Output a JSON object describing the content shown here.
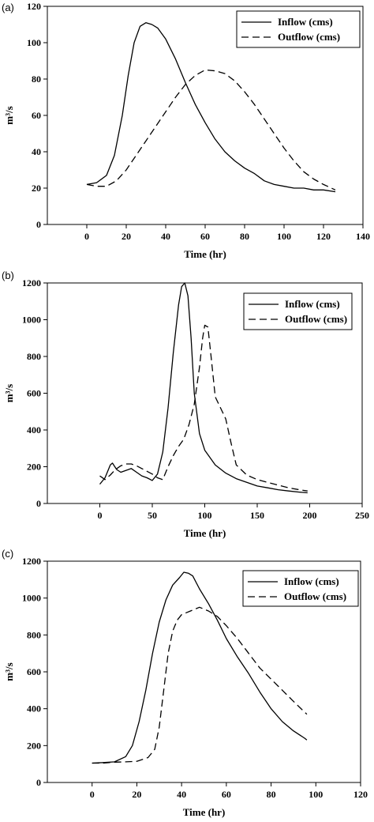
{
  "chart_data": [
    {
      "type": "line",
      "panel_label": "(a)",
      "xlabel": "Time (hr)",
      "ylabel": "m³/s",
      "xlim": [
        -20,
        140
      ],
      "ylim": [
        0,
        120
      ],
      "xticks": [
        "0",
        "20",
        "40",
        "60",
        "80",
        "100",
        "120",
        "140"
      ],
      "yticks": [
        "0",
        "20",
        "40",
        "60",
        "80",
        "100",
        "120"
      ],
      "legend_position": "top-right",
      "series": [
        {
          "name": "Inflow (cms)",
          "dash": "solid",
          "x": [
            0,
            5,
            10,
            14,
            18,
            21,
            24,
            27,
            30,
            33,
            36,
            40,
            45,
            50,
            55,
            60,
            65,
            70,
            75,
            80,
            85,
            90,
            95,
            100,
            105,
            110,
            115,
            120,
            126
          ],
          "y": [
            22,
            23,
            27,
            38,
            60,
            82,
            100,
            109,
            111,
            110,
            108,
            102,
            91,
            78,
            66,
            56,
            47,
            40,
            35,
            31,
            28,
            24,
            22,
            21,
            20,
            20,
            19,
            19,
            18
          ]
        },
        {
          "name": "Outflow (cms)",
          "dash": "dashed",
          "x": [
            0,
            5,
            10,
            15,
            20,
            25,
            30,
            35,
            40,
            45,
            50,
            55,
            60,
            65,
            70,
            75,
            80,
            85,
            90,
            95,
            100,
            105,
            110,
            115,
            120,
            126
          ],
          "y": [
            22,
            21,
            21,
            24,
            30,
            38,
            46,
            54,
            62,
            70,
            77,
            82,
            85,
            84.5,
            83,
            79,
            73,
            66,
            58,
            50,
            42,
            35,
            29,
            25,
            22,
            19
          ]
        }
      ]
    },
    {
      "type": "line",
      "panel_label": "(b)",
      "xlabel": "Time (hr)",
      "ylabel": "m³/s",
      "xlim": [
        -50,
        250
      ],
      "ylim": [
        0,
        1200
      ],
      "xticks": [
        "0",
        "50",
        "100",
        "150",
        "200",
        "250"
      ],
      "yticks": [
        "0",
        "200",
        "400",
        "600",
        "800",
        "1000",
        "1200"
      ],
      "legend_position": "top-right",
      "series": [
        {
          "name": "Inflow (cms)",
          "dash": "solid",
          "x": [
            0,
            5,
            10,
            12,
            16,
            20,
            25,
            30,
            35,
            40,
            45,
            50,
            55,
            60,
            65,
            70,
            75,
            78,
            81,
            84,
            87,
            90,
            95,
            100,
            110,
            120,
            130,
            140,
            150,
            160,
            170,
            180,
            190,
            198
          ],
          "y": [
            105,
            140,
            210,
            220,
            185,
            170,
            180,
            190,
            170,
            150,
            140,
            125,
            160,
            280,
            520,
            820,
            1080,
            1180,
            1200,
            1130,
            900,
            600,
            380,
            290,
            210,
            165,
            135,
            115,
            95,
            85,
            75,
            68,
            62,
            58
          ]
        },
        {
          "name": "Outflow (cms)",
          "dash": "dashed",
          "x": [
            0,
            5,
            10,
            15,
            20,
            25,
            30,
            35,
            40,
            45,
            50,
            55,
            60,
            65,
            70,
            75,
            80,
            85,
            90,
            95,
            98,
            100,
            103,
            106,
            110,
            115,
            120,
            125,
            130,
            140,
            150,
            160,
            170,
            180,
            190,
            198
          ],
          "y": [
            150,
            130,
            155,
            185,
            205,
            215,
            215,
            205,
            190,
            175,
            160,
            140,
            130,
            200,
            260,
            310,
            350,
            430,
            540,
            740,
            900,
            970,
            960,
            800,
            580,
            520,
            460,
            330,
            210,
            155,
            130,
            115,
            100,
            85,
            75,
            68
          ]
        }
      ]
    },
    {
      "type": "line",
      "panel_label": "(c)",
      "xlabel": "Time (hr)",
      "ylabel": "m³/s",
      "xlim": [
        -20,
        120
      ],
      "ylim": [
        0,
        1200
      ],
      "xticks": [
        "0",
        "20",
        "40",
        "60",
        "80",
        "100",
        "120"
      ],
      "yticks": [
        "0",
        "200",
        "400",
        "600",
        "800",
        "1000",
        "1200"
      ],
      "legend_position": "top-right",
      "series": [
        {
          "name": "Inflow (cms)",
          "dash": "solid",
          "x": [
            0,
            5,
            10,
            15,
            18,
            21,
            24,
            27,
            30,
            33,
            36,
            39,
            41,
            43,
            45,
            48,
            52,
            56,
            60,
            65,
            70,
            75,
            80,
            85,
            90,
            95,
            96
          ],
          "y": [
            105,
            108,
            112,
            140,
            200,
            330,
            500,
            700,
            870,
            990,
            1070,
            1110,
            1140,
            1135,
            1120,
            1050,
            970,
            880,
            780,
            680,
            590,
            490,
            400,
            330,
            280,
            240,
            230
          ]
        },
        {
          "name": "Outflow (cms)",
          "dash": "dashed",
          "x": [
            0,
            5,
            10,
            15,
            20,
            25,
            28,
            30,
            32,
            34,
            36,
            38,
            40,
            44,
            48,
            52,
            56,
            60,
            65,
            70,
            75,
            80,
            85,
            90,
            96
          ],
          "y": [
            105,
            105,
            110,
            112,
            115,
            135,
            180,
            300,
            500,
            700,
            820,
            880,
            910,
            930,
            950,
            930,
            900,
            850,
            780,
            700,
            620,
            560,
            500,
            440,
            370
          ]
        }
      ]
    }
  ]
}
